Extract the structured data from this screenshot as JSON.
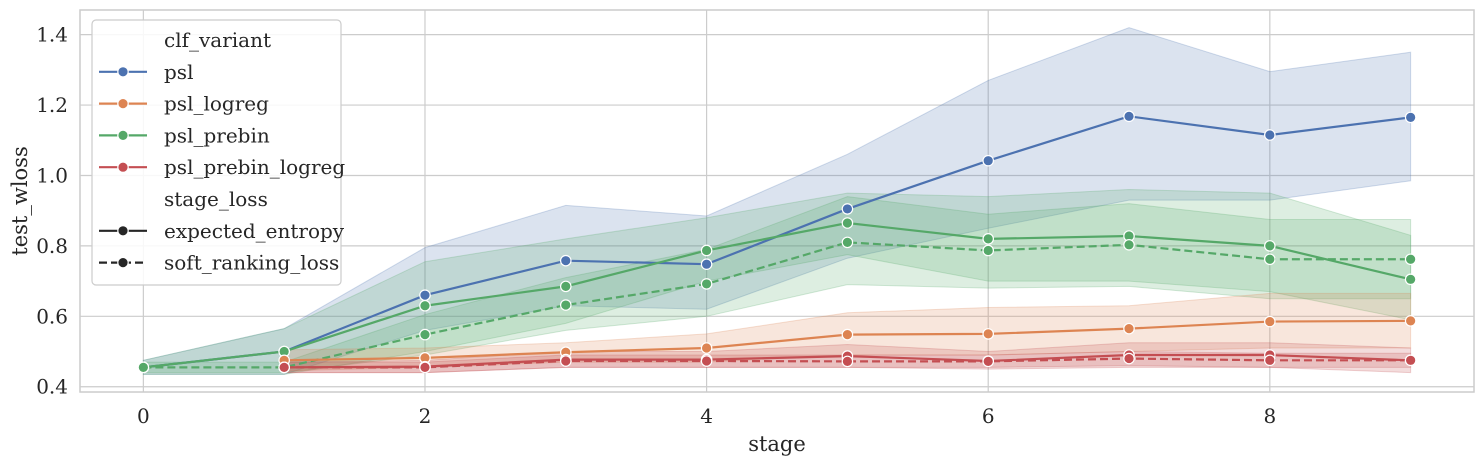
{
  "chart_data": {
    "type": "line",
    "xlabel": "stage",
    "ylabel": "test_wloss",
    "xlim": [
      -0.45,
      9.45
    ],
    "ylim": [
      0.385,
      1.47
    ],
    "xticks": [
      0,
      2,
      4,
      6,
      8
    ],
    "yticks": [
      0.4,
      0.6,
      0.8,
      1.0,
      1.2,
      1.4
    ],
    "ytick_labels": [
      "0.4",
      "0.6",
      "0.8",
      "1.0",
      "1.2",
      "1.4"
    ],
    "grid": true,
    "legend": {
      "placement": "upper-left",
      "hue_title": "clf_variant",
      "style_title": "stage_loss",
      "style_entries": [
        {
          "label": "expected_entropy",
          "dash": "solid"
        },
        {
          "label": "soft_ranking_loss",
          "dash": "dashed"
        }
      ]
    },
    "series": [
      {
        "name": "psl",
        "color": "#4c72b0",
        "style": "expected_entropy",
        "x": [
          0,
          1,
          2,
          3,
          4,
          5,
          6,
          7,
          8,
          9
        ],
        "y": [
          0.455,
          0.5,
          0.66,
          0.758,
          0.748,
          0.905,
          1.042,
          1.168,
          1.115,
          1.165
        ],
        "ci_low": [
          0.435,
          0.435,
          0.56,
          0.63,
          0.62,
          0.765,
          0.85,
          0.93,
          0.93,
          0.985
        ],
        "ci_high": [
          0.475,
          0.565,
          0.795,
          0.915,
          0.885,
          1.06,
          1.27,
          1.42,
          1.295,
          1.35
        ]
      },
      {
        "name": "psl_prebin",
        "color": "#55a868",
        "style": "expected_entropy",
        "x": [
          0,
          1,
          2,
          3,
          4,
          5,
          6,
          7,
          8,
          9
        ],
        "y": [
          0.455,
          0.5,
          0.63,
          0.685,
          0.787,
          0.865,
          0.82,
          0.828,
          0.8,
          0.705
        ],
        "ci_low": [
          0.435,
          0.435,
          0.5,
          0.58,
          0.7,
          0.775,
          0.7,
          0.7,
          0.67,
          0.59
        ],
        "ci_high": [
          0.475,
          0.565,
          0.755,
          0.82,
          0.88,
          0.95,
          0.94,
          0.96,
          0.95,
          0.83
        ]
      },
      {
        "name": "psl_prebin",
        "color": "#55a868",
        "style": "soft_ranking_loss",
        "x": [
          0,
          1,
          2,
          3,
          4,
          5,
          6,
          7,
          8,
          9
        ],
        "y": [
          0.455,
          0.455,
          0.548,
          0.632,
          0.692,
          0.81,
          0.787,
          0.803,
          0.762,
          0.762
        ],
        "ci_low": [
          0.44,
          0.44,
          0.49,
          0.56,
          0.6,
          0.69,
          0.68,
          0.685,
          0.65,
          0.65
        ],
        "ci_high": [
          0.47,
          0.47,
          0.605,
          0.71,
          0.79,
          0.94,
          0.89,
          0.92,
          0.875,
          0.875
        ]
      },
      {
        "name": "psl_logreg",
        "color": "#dd8452",
        "style": "expected_entropy",
        "x": [
          1,
          2,
          3,
          4,
          5,
          6,
          7,
          8,
          9
        ],
        "y": [
          0.475,
          0.482,
          0.498,
          0.51,
          0.548,
          0.55,
          0.565,
          0.585,
          0.587
        ],
        "ci_low": [
          0.445,
          0.455,
          0.47,
          0.47,
          0.49,
          0.49,
          0.5,
          0.51,
          0.51
        ],
        "ci_high": [
          0.505,
          0.51,
          0.525,
          0.55,
          0.61,
          0.625,
          0.63,
          0.665,
          0.665
        ]
      },
      {
        "name": "psl_prebin_logreg",
        "color": "#c44e52",
        "style": "expected_entropy",
        "x": [
          1,
          2,
          3,
          4,
          5,
          6,
          7,
          8,
          9
        ],
        "y": [
          0.455,
          0.457,
          0.477,
          0.477,
          0.487,
          0.473,
          0.49,
          0.49,
          0.475
        ],
        "ci_low": [
          0.44,
          0.44,
          0.455,
          0.455,
          0.455,
          0.45,
          0.455,
          0.455,
          0.44
        ],
        "ci_high": [
          0.47,
          0.475,
          0.5,
          0.5,
          0.52,
          0.5,
          0.525,
          0.525,
          0.51
        ]
      },
      {
        "name": "psl_prebin_logreg",
        "color": "#c44e52",
        "style": "soft_ranking_loss",
        "x": [
          1,
          2,
          3,
          4,
          5,
          6,
          7,
          8,
          9
        ],
        "y": [
          0.455,
          0.455,
          0.473,
          0.473,
          0.472,
          0.472,
          0.48,
          0.475,
          0.475
        ],
        "ci_low": [
          0.44,
          0.44,
          0.455,
          0.455,
          0.455,
          0.455,
          0.46,
          0.455,
          0.455
        ],
        "ci_high": [
          0.47,
          0.47,
          0.49,
          0.49,
          0.49,
          0.49,
          0.5,
          0.495,
          0.495
        ]
      }
    ],
    "hue_entries": [
      {
        "label": "psl",
        "color": "#4c72b0"
      },
      {
        "label": "psl_logreg",
        "color": "#dd8452"
      },
      {
        "label": "psl_prebin",
        "color": "#55a868"
      },
      {
        "label": "psl_prebin_logreg",
        "color": "#c44e52"
      }
    ]
  }
}
